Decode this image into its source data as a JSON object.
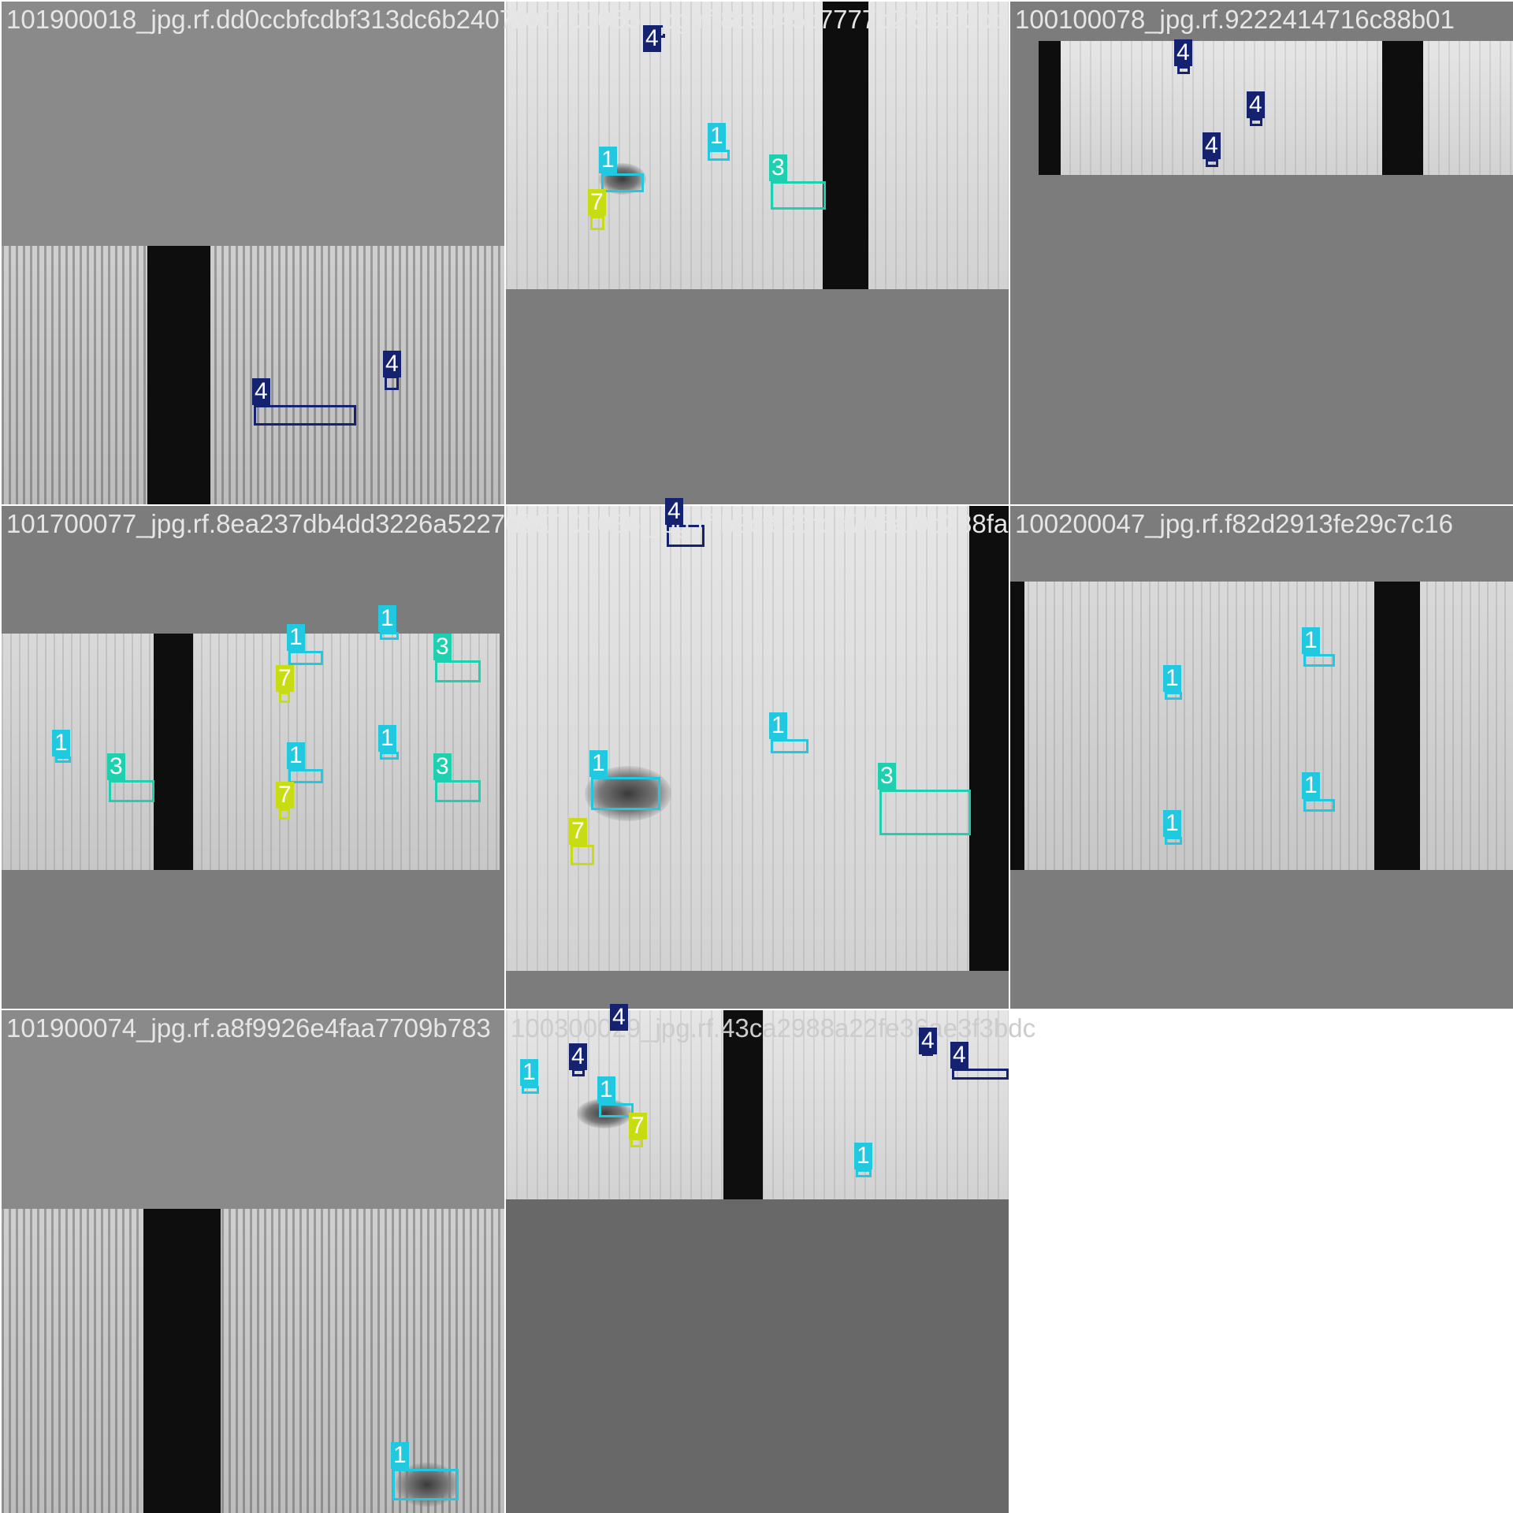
{
  "tiles": [
    {
      "filename": "101900018_jpg.rf.dd0ccbfcdbf313dc6b24070",
      "labels": [
        "4",
        "4"
      ]
    },
    {
      "filename": "100700055_jpg.rf.8ceb45c7777b2f5e0f0bb",
      "labels": [
        "4",
        "1",
        "1",
        "3",
        "7"
      ]
    },
    {
      "filename": "100100078_jpg.rf.9222414716c88b01",
      "labels": [
        "4",
        "4",
        "4"
      ]
    },
    {
      "filename": "101700077_jpg.rf.8ea237db4dd3226a5227028",
      "labels": [
        "1",
        "1",
        "3",
        "1",
        "1",
        "3",
        "1",
        "3",
        "7",
        "7"
      ]
    },
    {
      "filename": "100700036_jpg.rf.b9cf836fdd706af0b288fa",
      "labels": [
        "4",
        "1",
        "1",
        "3",
        "7"
      ]
    },
    {
      "filename": "100200047_jpg.rf.f82d2913fe29c7c16",
      "labels": [
        "1",
        "1",
        "1",
        "1"
      ]
    },
    {
      "filename": "101900074_jpg.rf.a8f9926e4faa7709b783",
      "labels": [
        "1"
      ]
    },
    {
      "filename": "100300029_jpg.rf.43ca2988a22fe36ae3f3bdc",
      "labels": [
        "4",
        "4",
        "4",
        "4",
        "1",
        "1",
        "1",
        "7"
      ]
    }
  ],
  "colors": {
    "class_1": "#20c8e0",
    "class_3": "#1ed0b0",
    "class_4": "#142270",
    "class_7": "#c8dc14"
  }
}
